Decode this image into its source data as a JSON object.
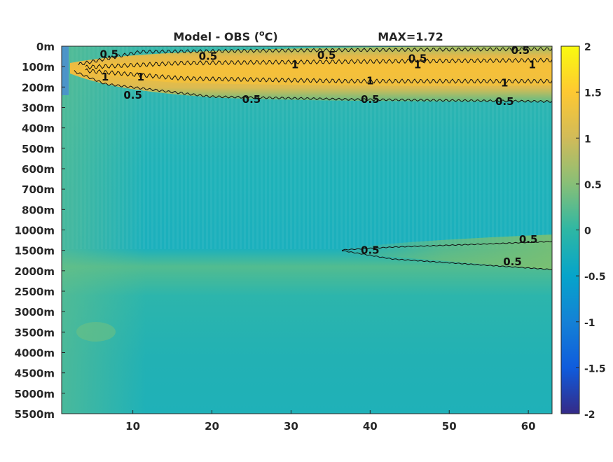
{
  "chart_data": {
    "type": "heatmap",
    "title": "Model - OBS (°C)",
    "title_base": "Model - OBS (",
    "title_sup": "o",
    "title_end": "C)",
    "annotation": "MAX=1.72",
    "x_ticks": [
      "10",
      "20",
      "30",
      "40",
      "50",
      "60"
    ],
    "x_tick_values": [
      10,
      20,
      30,
      40,
      50,
      60
    ],
    "xlim": [
      1,
      63
    ],
    "y_ticks": [
      "0m",
      "100m",
      "200m",
      "300m",
      "400m",
      "500m",
      "600m",
      "700m",
      "800m",
      "1000m",
      "1500m",
      "2000m",
      "2500m",
      "3000m",
      "3500m",
      "4000m",
      "4500m",
      "5000m",
      "5500m"
    ],
    "y_levels": [
      0,
      100,
      200,
      300,
      400,
      500,
      600,
      700,
      800,
      1000,
      1500,
      2000,
      2500,
      3000,
      3500,
      4000,
      4500,
      5000,
      5500
    ],
    "y_direction": "depth increasing downward",
    "colorbar": {
      "ticks": [
        "2",
        "1.5",
        "1",
        "0.5",
        "0",
        "-0.5",
        "-1",
        "-1.5",
        "-2"
      ],
      "range": [
        -2,
        2
      ],
      "colormap": "parula",
      "colors": [
        "#352a87",
        "#0f5cdd",
        "#1481d6",
        "#06a4ca",
        "#2eb7a4",
        "#87bf77",
        "#d1bb59",
        "#fec832",
        "#f9fb0e"
      ]
    },
    "contour_levels": [
      0.5,
      1
    ],
    "contour_labels": [
      {
        "text": "0.5",
        "x": 7,
        "depth": 40
      },
      {
        "text": "0.5",
        "x": 19.5,
        "depth": 50
      },
      {
        "text": "0.5",
        "x": 34.5,
        "depth": 45
      },
      {
        "text": "0.5",
        "x": 46,
        "depth": 60
      },
      {
        "text": "0.5",
        "x": 59,
        "depth": 20
      },
      {
        "text": "1",
        "x": 30.5,
        "depth": 90
      },
      {
        "text": "1",
        "x": 46,
        "depth": 90
      },
      {
        "text": "1",
        "x": 60.5,
        "depth": 90
      },
      {
        "text": "1",
        "x": 6.5,
        "depth": 150
      },
      {
        "text": "1",
        "x": 11,
        "depth": 150
      },
      {
        "text": "1",
        "x": 40,
        "depth": 170
      },
      {
        "text": "1",
        "x": 57,
        "depth": 180
      },
      {
        "text": "0.5",
        "x": 10,
        "depth": 240
      },
      {
        "text": "0.5",
        "x": 25,
        "depth": 260
      },
      {
        "text": "0.5",
        "x": 40,
        "depth": 260
      },
      {
        "text": "0.5",
        "x": 57,
        "depth": 270
      },
      {
        "text": "0.5",
        "x": 60,
        "depth": 1230
      },
      {
        "text": "0.5",
        "x": 40,
        "depth": 1500
      },
      {
        "text": "0.5",
        "x": 58,
        "depth": 1780
      }
    ]
  }
}
